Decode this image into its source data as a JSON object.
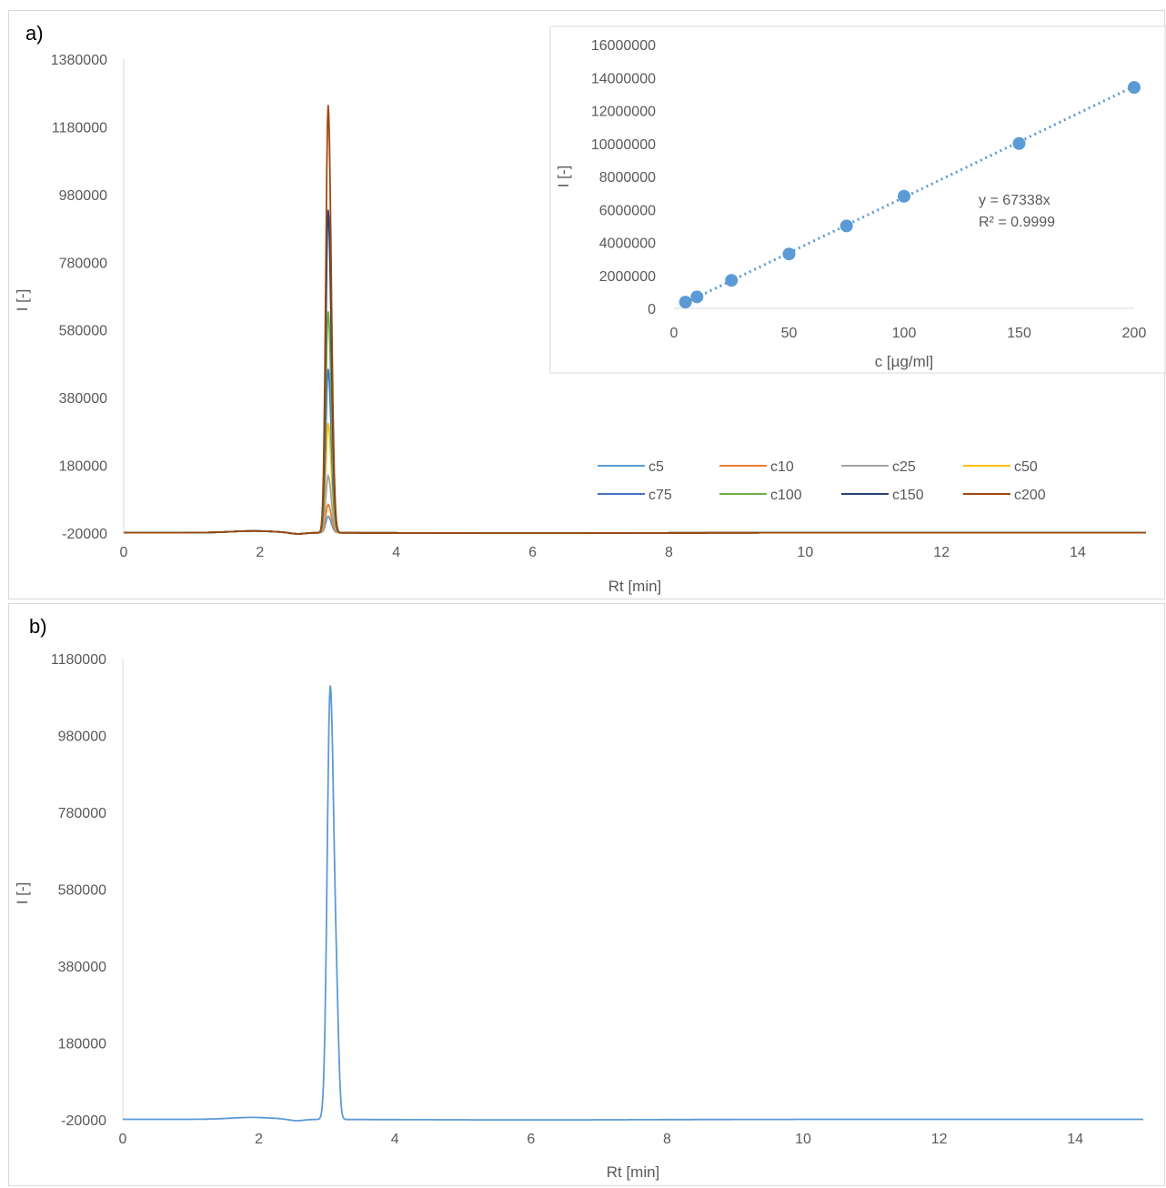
{
  "chart_data": [
    {
      "panel_label": "a)",
      "type": "line",
      "xlabel": "Rt [min]",
      "ylabel": "I [-]",
      "xlim": [
        0,
        15
      ],
      "ylim": [
        -20000,
        1380000
      ],
      "x_ticks": [
        "0",
        "2",
        "4",
        "6",
        "8",
        "10",
        "12",
        "14"
      ],
      "y_ticks": [
        "-20000",
        "180000",
        "380000",
        "580000",
        "780000",
        "980000",
        "1180000",
        "1380000"
      ],
      "peak_rt": 3.0,
      "legend_position": "lower-right",
      "series": [
        {
          "name": "c5",
          "color": "#5b9bd5",
          "peak": 30000
        },
        {
          "name": "c10",
          "color": "#ed7d31",
          "peak": 65000
        },
        {
          "name": "c25",
          "color": "#a5a5a5",
          "peak": 150000
        },
        {
          "name": "c50",
          "color": "#ffc000",
          "peak": 305000
        },
        {
          "name": "c75",
          "color": "#4472c4",
          "peak": 465000
        },
        {
          "name": "c100",
          "color": "#70ad47",
          "peak": 635000
        },
        {
          "name": "c150",
          "color": "#264478",
          "peak": 935000
        },
        {
          "name": "c200",
          "color": "#9e480e",
          "peak": 1245000
        }
      ],
      "inset": {
        "type": "scatter",
        "xlabel": "c [µg/ml]",
        "ylabel": "I [-]",
        "xlim": [
          0,
          200
        ],
        "ylim": [
          0,
          16000000
        ],
        "x_ticks": [
          "0",
          "50",
          "100",
          "150",
          "200"
        ],
        "y_ticks": [
          "0",
          "2000000",
          "4000000",
          "6000000",
          "8000000",
          "10000000",
          "12000000",
          "14000000",
          "16000000"
        ],
        "x": [
          5,
          10,
          25,
          50,
          75,
          100,
          150,
          200
        ],
        "y": [
          380000,
          700000,
          1700000,
          3300000,
          5000000,
          6800000,
          10000000,
          13400000
        ],
        "trendline": "linear, dotted",
        "equation": "y = 67338x",
        "r_squared": "R² = 0.9999",
        "point_color": "#5b9bd5"
      }
    },
    {
      "panel_label": "b)",
      "type": "line",
      "xlabel": "Rt [min]",
      "ylabel": "I [-]",
      "xlim": [
        0,
        15
      ],
      "ylim": [
        -20000,
        1180000
      ],
      "x_ticks": [
        "0",
        "2",
        "4",
        "6",
        "8",
        "10",
        "12",
        "14"
      ],
      "y_ticks": [
        "-20000",
        "180000",
        "380000",
        "580000",
        "780000",
        "980000",
        "1180000"
      ],
      "series": [
        {
          "color": "#5b9bd5",
          "peak_rt": 3.05,
          "peak": 1110000
        }
      ]
    }
  ]
}
